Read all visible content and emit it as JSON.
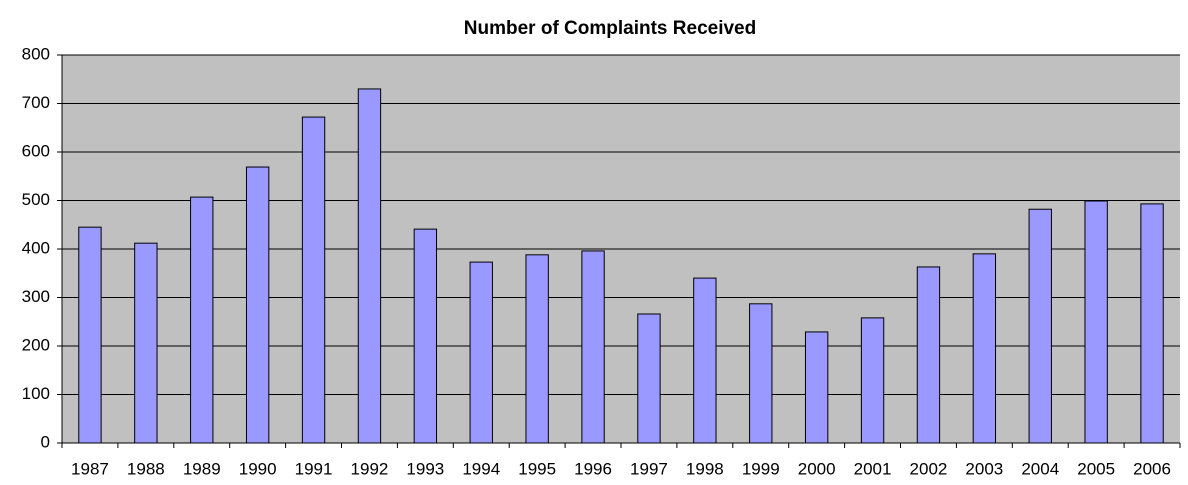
{
  "chart_data": {
    "type": "bar",
    "title": "Number of Complaints Received",
    "categories": [
      "1987",
      "1988",
      "1989",
      "1990",
      "1991",
      "1992",
      "1993",
      "1994",
      "1995",
      "1996",
      "1997",
      "1998",
      "1999",
      "2000",
      "2001",
      "2002",
      "2003",
      "2004",
      "2005",
      "2006"
    ],
    "values": [
      445,
      412,
      507,
      569,
      672,
      730,
      441,
      373,
      388,
      396,
      266,
      340,
      287,
      229,
      258,
      363,
      390,
      482,
      499,
      493
    ],
    "color": "#9999ff",
    "ylim": [
      0,
      800
    ],
    "yticks": [
      0,
      100,
      200,
      300,
      400,
      500,
      600,
      700,
      800
    ],
    "grid": true
  }
}
